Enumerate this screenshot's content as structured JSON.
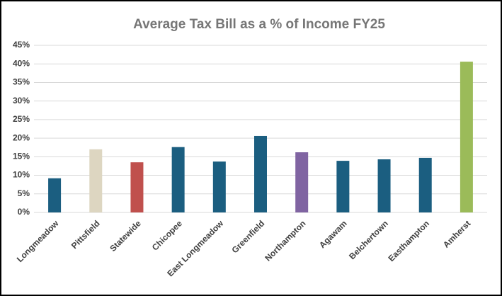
{
  "chart_data": {
    "type": "bar",
    "title": "Average Tax Bill as a % of Income FY25",
    "categories": [
      "Longmeadow",
      "Pittsfield",
      "Statewide",
      "Chicopee",
      "East Longmeadow",
      "Greenfield",
      "Northampton",
      "Agawam",
      "Belchertown",
      "Easthampton",
      "Amherst"
    ],
    "values": [
      9.2,
      17.0,
      13.5,
      17.6,
      13.7,
      20.6,
      16.2,
      13.9,
      14.3,
      14.7,
      40.6
    ],
    "colors": [
      "#1b5e80",
      "#ddd6c1",
      "#c0504d",
      "#1b5e80",
      "#1b5e80",
      "#1b5e80",
      "#8064a2",
      "#1b5e80",
      "#1b5e80",
      "#1b5e80",
      "#9bbb59"
    ],
    "ylim": [
      0,
      45
    ],
    "yticks": [
      {
        "value": 0,
        "label": "0%"
      },
      {
        "value": 5,
        "label": "5%"
      },
      {
        "value": 10,
        "label": "10%"
      },
      {
        "value": 15,
        "label": "15%"
      },
      {
        "value": 20,
        "label": "20%"
      },
      {
        "value": 25,
        "label": "25%"
      },
      {
        "value": 30,
        "label": "30%"
      },
      {
        "value": 35,
        "label": "35%"
      },
      {
        "value": 40,
        "label": "40%"
      },
      {
        "value": 45,
        "label": "45%"
      }
    ],
    "grid": true
  }
}
